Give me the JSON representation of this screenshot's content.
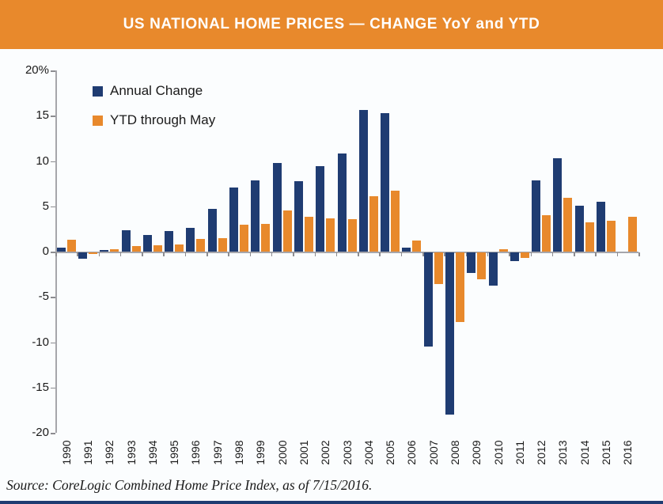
{
  "header": {
    "title": "US NATIONAL HOME PRICES — CHANGE YoY and YTD"
  },
  "legend": {
    "items": [
      {
        "label": "Annual Change"
      },
      {
        "label": "YTD through May"
      }
    ]
  },
  "source_note": "Source: CoreLogic Combined Home Price Index, as of 7/15/2016.",
  "colors": {
    "header_bg": "#E8892C",
    "annual_bar": "#1F3C72",
    "ytd_bar": "#E8892C",
    "background": "#FBFDFE",
    "axis": "#A6A6AB",
    "bottom_border": "#1F3C72"
  },
  "chart_data": {
    "type": "bar",
    "title": "US NATIONAL HOME PRICES — CHANGE YoY and YTD",
    "xlabel": "",
    "ylabel": "",
    "ylim": [
      -20,
      20
    ],
    "grid": false,
    "legend_position": "top-left",
    "ytick_values": [
      20,
      15,
      10,
      5,
      0,
      -5,
      -10,
      -15,
      -20
    ],
    "ytick_labels": [
      "20%",
      "15",
      "10",
      "5",
      "0",
      "-5",
      "-10",
      "-15",
      "-20"
    ],
    "categories": [
      "1990",
      "1991",
      "1992",
      "1993",
      "1994",
      "1995",
      "1996",
      "1997",
      "1998",
      "1999",
      "2000",
      "2001",
      "2002",
      "2003",
      "2004",
      "2005",
      "2006",
      "2007",
      "2008",
      "2009",
      "2010",
      "2011",
      "2012",
      "2013",
      "2014",
      "2015",
      "2016"
    ],
    "series": [
      {
        "name": "Annual Change",
        "color": "#1F3C72",
        "values": [
          0.4,
          -0.7,
          0.2,
          2.4,
          1.8,
          2.3,
          2.6,
          4.7,
          7.1,
          7.9,
          9.8,
          7.8,
          9.4,
          10.8,
          15.6,
          15.3,
          0.4,
          -10.4,
          -17.9,
          -2.3,
          -3.7,
          -1.0,
          7.9,
          10.3,
          5.1,
          5.5,
          null
        ]
      },
      {
        "name": "YTD through May",
        "color": "#E8892C",
        "values": [
          1.3,
          -0.2,
          0.3,
          0.6,
          0.7,
          0.8,
          1.4,
          1.5,
          3.0,
          3.1,
          4.5,
          3.8,
          3.7,
          3.6,
          6.1,
          6.7,
          1.2,
          -3.5,
          -7.7,
          -3.0,
          0.3,
          -0.6,
          4.0,
          5.9,
          3.2,
          3.4,
          3.8
        ]
      }
    ]
  }
}
